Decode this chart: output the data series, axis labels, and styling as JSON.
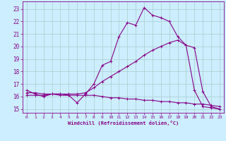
{
  "xlabel": "Windchill (Refroidissement éolien,°C)",
  "bg_color": "#cceeff",
  "grid_color": "#aacccc",
  "line_color": "#880088",
  "x_ticks": [
    0,
    1,
    2,
    3,
    4,
    5,
    6,
    7,
    8,
    9,
    10,
    11,
    12,
    13,
    14,
    15,
    16,
    17,
    18,
    19,
    20,
    21,
    22,
    23
  ],
  "y_ticks": [
    15,
    16,
    17,
    18,
    19,
    20,
    21,
    22,
    23
  ],
  "xlim": [
    -0.5,
    23.5
  ],
  "ylim": [
    14.7,
    23.6
  ],
  "series1_x": [
    0,
    1,
    2,
    3,
    4,
    5,
    6,
    7,
    8,
    9,
    10,
    11,
    12,
    13,
    14,
    15,
    16,
    17,
    18,
    19,
    20,
    21,
    22,
    23
  ],
  "series1_y": [
    16.5,
    16.2,
    16.0,
    16.2,
    16.2,
    16.1,
    15.5,
    16.2,
    17.0,
    18.5,
    18.8,
    20.8,
    21.9,
    21.7,
    23.1,
    22.5,
    22.3,
    22.0,
    20.8,
    20.1,
    16.5,
    15.2,
    15.1,
    15.0
  ],
  "series2_x": [
    0,
    1,
    2,
    3,
    4,
    5,
    6,
    7,
    8,
    9,
    10,
    11,
    12,
    13,
    14,
    15,
    16,
    17,
    18,
    19,
    20,
    21,
    22,
    23
  ],
  "series2_y": [
    16.1,
    16.1,
    16.1,
    16.2,
    16.2,
    16.2,
    16.2,
    16.3,
    16.7,
    17.2,
    17.6,
    18.0,
    18.4,
    18.8,
    19.3,
    19.7,
    20.0,
    20.3,
    20.5,
    20.1,
    19.9,
    16.4,
    15.2,
    15.0
  ],
  "series3_x": [
    0,
    1,
    2,
    3,
    4,
    5,
    6,
    7,
    8,
    9,
    10,
    11,
    12,
    13,
    14,
    15,
    16,
    17,
    18,
    19,
    20,
    21,
    22,
    23
  ],
  "series3_y": [
    16.3,
    16.3,
    16.2,
    16.2,
    16.1,
    16.1,
    16.1,
    16.1,
    16.1,
    16.0,
    15.9,
    15.9,
    15.8,
    15.8,
    15.7,
    15.7,
    15.6,
    15.6,
    15.5,
    15.5,
    15.4,
    15.4,
    15.3,
    15.2
  ]
}
